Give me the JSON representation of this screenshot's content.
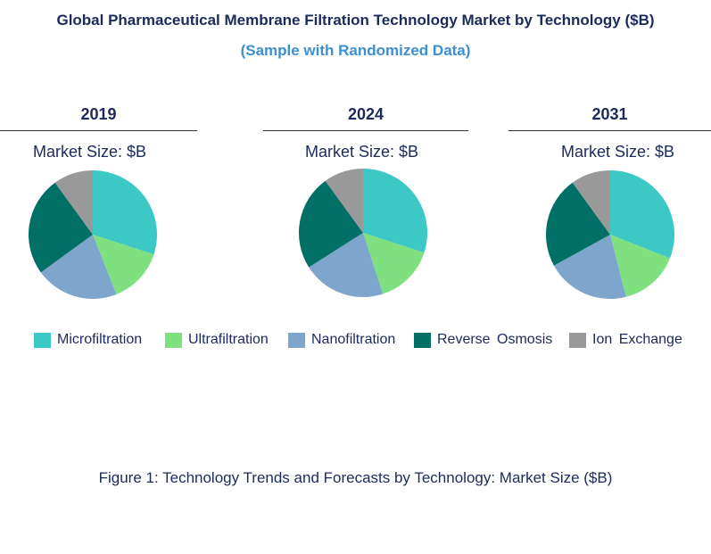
{
  "title": "Global Pharmaceutical Membrane Filtration Technology Market by Technology ($B)",
  "subtitle": "(Sample with Randomized Data)",
  "caption": "Figure 1: Technology Trends and Forecasts by Technology: Market Size ($B)",
  "market_size_label": "Market Size: $B",
  "chart_data": [
    {
      "type": "pie",
      "title": "2019",
      "categories": [
        "Microfiltration",
        "Ultrafiltration",
        "Nanofiltration",
        "Reverse Osmosis",
        "Ion Exchange"
      ],
      "values": [
        30,
        14,
        21,
        25,
        10
      ],
      "colors": [
        "#3cc8c4",
        "#7ee07e",
        "#7ea6cc",
        "#007066",
        "#999999"
      ]
    },
    {
      "type": "pie",
      "title": "2024",
      "categories": [
        "Microfiltration",
        "Ultrafiltration",
        "Nanofiltration",
        "Reverse Osmosis",
        "Ion Exchange"
      ],
      "values": [
        30,
        15,
        21,
        24,
        10
      ],
      "colors": [
        "#3cc8c4",
        "#7ee07e",
        "#7ea6cc",
        "#007066",
        "#999999"
      ]
    },
    {
      "type": "pie",
      "title": "2031",
      "categories": [
        "Microfiltration",
        "Ultrafiltration",
        "Nanofiltration",
        "Reverse Osmosis",
        "Ion Exchange"
      ],
      "values": [
        31,
        15,
        21,
        23,
        10
      ],
      "colors": [
        "#3cc8c4",
        "#7ee07e",
        "#7ea6cc",
        "#007066",
        "#999999"
      ]
    }
  ],
  "legend": [
    {
      "label": "Microfiltration",
      "color": "#3cc8c4"
    },
    {
      "label": "Ultrafiltration",
      "color": "#7ee07e"
    },
    {
      "label": "Nanofiltration",
      "color": "#7ea6cc"
    },
    {
      "label": "Reverse Osmosis",
      "color": "#007066"
    },
    {
      "label": "Ion Exchange",
      "color": "#999999"
    }
  ]
}
